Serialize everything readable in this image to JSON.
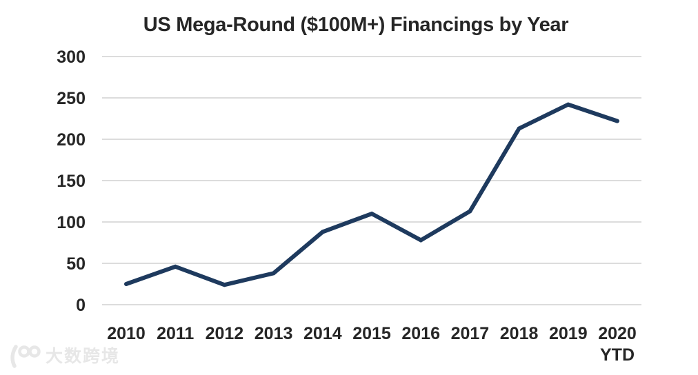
{
  "watermark": {
    "text": "大数跨境",
    "color": "#e7e7e7"
  },
  "chart_data": {
    "type": "line",
    "title": "US Mega-Round ($100M+) Financings by Year",
    "categories": [
      "2010",
      "2011",
      "2012",
      "2013",
      "2014",
      "2015",
      "2016",
      "2017",
      "2018",
      "2019",
      "2020 YTD"
    ],
    "values": [
      25,
      46,
      24,
      38,
      88,
      110,
      78,
      113,
      213,
      242,
      222
    ],
    "xlabel": "",
    "ylabel": "",
    "ylim": [
      0,
      300
    ],
    "yticks": [
      0,
      50,
      100,
      150,
      200,
      250,
      300
    ],
    "grid": "horizontal-only",
    "legend": "none",
    "line_color": "#1e3a5e",
    "grid_color": "#dcdcdc",
    "text_color": "#262626"
  }
}
